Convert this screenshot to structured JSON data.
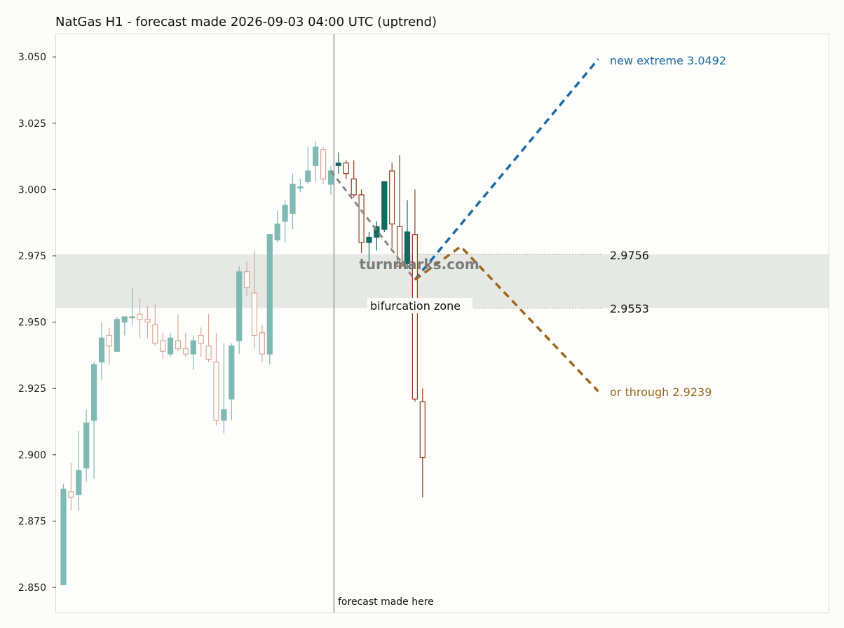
{
  "chart_data": {
    "type": "candlestick",
    "title": "NatGas H1 - forecast made 2026-09-03 04:00 UTC (uptrend)",
    "ylim": [
      2.8405,
      3.0585
    ],
    "yticks": [
      2.85,
      2.875,
      2.9,
      2.925,
      2.95,
      2.975,
      3.0,
      3.025,
      3.05
    ],
    "ytick_labels": [
      "2.850",
      "2.875",
      "2.900",
      "2.925",
      "2.950",
      "2.975",
      "3.000",
      "3.025",
      "3.050"
    ],
    "grid": false,
    "colors": {
      "history_up": "#7fb9b3",
      "history_down": "#d9a89a",
      "forecast_up": "#126b5f",
      "forecast_down": "#8f3f1c",
      "band": "#e6e8e6",
      "extreme_line": "#1f6aa3",
      "alt_line": "#9a6a1d",
      "path_line": "#888888",
      "marker_line": "#999999"
    },
    "history_candles": [
      {
        "o": 2.851,
        "h": 2.889,
        "l": 2.851,
        "c": 2.887
      },
      {
        "o": 2.886,
        "h": 2.897,
        "l": 2.879,
        "c": 2.884
      },
      {
        "o": 2.885,
        "h": 2.909,
        "l": 2.879,
        "c": 2.894
      },
      {
        "o": 2.895,
        "h": 2.917,
        "l": 2.89,
        "c": 2.912
      },
      {
        "o": 2.913,
        "h": 2.935,
        "l": 2.891,
        "c": 2.934
      },
      {
        "o": 2.935,
        "h": 2.95,
        "l": 2.928,
        "c": 2.944
      },
      {
        "o": 2.945,
        "h": 2.948,
        "l": 2.934,
        "c": 2.941
      },
      {
        "o": 2.939,
        "h": 2.952,
        "l": 2.939,
        "c": 2.951
      },
      {
        "o": 2.95,
        "h": 2.952,
        "l": 2.945,
        "c": 2.952
      },
      {
        "o": 2.952,
        "h": 2.963,
        "l": 2.949,
        "c": 2.952
      },
      {
        "o": 2.953,
        "h": 2.959,
        "l": 2.944,
        "c": 2.951
      },
      {
        "o": 2.951,
        "h": 2.956,
        "l": 2.944,
        "c": 2.95
      },
      {
        "o": 2.949,
        "h": 2.957,
        "l": 2.941,
        "c": 2.942
      },
      {
        "o": 2.943,
        "h": 2.946,
        "l": 2.936,
        "c": 2.939
      },
      {
        "o": 2.938,
        "h": 2.946,
        "l": 2.937,
        "c": 2.944
      },
      {
        "o": 2.943,
        "h": 2.953,
        "l": 2.939,
        "c": 2.94
      },
      {
        "o": 2.94,
        "h": 2.946,
        "l": 2.937,
        "c": 2.938
      },
      {
        "o": 2.938,
        "h": 2.945,
        "l": 2.932,
        "c": 2.943
      },
      {
        "o": 2.945,
        "h": 2.948,
        "l": 2.937,
        "c": 2.942
      },
      {
        "o": 2.941,
        "h": 2.953,
        "l": 2.935,
        "c": 2.936
      },
      {
        "o": 2.935,
        "h": 2.946,
        "l": 2.911,
        "c": 2.913
      },
      {
        "o": 2.913,
        "h": 2.942,
        "l": 2.908,
        "c": 2.917
      },
      {
        "o": 2.921,
        "h": 2.942,
        "l": 2.913,
        "c": 2.941
      },
      {
        "o": 2.943,
        "h": 2.971,
        "l": 2.938,
        "c": 2.969
      },
      {
        "o": 2.969,
        "h": 2.973,
        "l": 2.96,
        "c": 2.963
      },
      {
        "o": 2.961,
        "h": 2.977,
        "l": 2.94,
        "c": 2.945
      },
      {
        "o": 2.946,
        "h": 2.949,
        "l": 2.935,
        "c": 2.938
      },
      {
        "o": 2.938,
        "h": 2.983,
        "l": 2.934,
        "c": 2.983
      },
      {
        "o": 2.981,
        "h": 2.992,
        "l": 2.98,
        "c": 2.987
      },
      {
        "o": 2.988,
        "h": 2.996,
        "l": 2.98,
        "c": 2.994
      },
      {
        "o": 2.991,
        "h": 3.006,
        "l": 2.985,
        "c": 3.002
      },
      {
        "o": 3.001,
        "h": 3.004,
        "l": 2.999,
        "c": 3.001
      },
      {
        "o": 3.003,
        "h": 3.016,
        "l": 3.002,
        "c": 3.007
      },
      {
        "o": 3.009,
        "h": 3.018,
        "l": 3.003,
        "c": 3.016
      },
      {
        "o": 3.015,
        "h": 3.016,
        "l": 3.002,
        "c": 3.004
      },
      {
        "o": 3.002,
        "h": 3.009,
        "l": 2.998,
        "c": 3.007
      }
    ],
    "forecast_candles": [
      {
        "o": 3.009,
        "h": 3.014,
        "l": 3.006,
        "c": 3.01
      },
      {
        "o": 3.01,
        "h": 3.011,
        "l": 3.004,
        "c": 3.006
      },
      {
        "o": 3.004,
        "h": 3.011,
        "l": 2.997,
        "c": 2.998
      },
      {
        "o": 2.998,
        "h": 3.0,
        "l": 2.976,
        "c": 2.98
      },
      {
        "o": 2.98,
        "h": 2.984,
        "l": 2.972,
        "c": 2.982
      },
      {
        "o": 2.982,
        "h": 2.988,
        "l": 2.977,
        "c": 2.986
      },
      {
        "o": 2.985,
        "h": 3.003,
        "l": 2.984,
        "c": 3.003
      },
      {
        "o": 3.007,
        "h": 3.01,
        "l": 2.978,
        "c": 2.987
      },
      {
        "o": 2.986,
        "h": 3.013,
        "l": 2.97,
        "c": 2.971
      },
      {
        "o": 2.972,
        "h": 2.996,
        "l": 2.97,
        "c": 2.984
      },
      {
        "o": 2.983,
        "h": 3.0,
        "l": 2.92,
        "c": 2.921
      },
      {
        "o": 2.92,
        "h": 2.925,
        "l": 2.884,
        "c": 2.899
      }
    ],
    "forecast_path": [
      {
        "x": 35,
        "y": 3.007
      },
      {
        "x": 46,
        "y": 2.966
      }
    ],
    "extreme_path": [
      {
        "x": 46,
        "y": 2.966
      },
      {
        "x": 70,
        "y": 3.0492
      }
    ],
    "alt_path": [
      {
        "x": 46,
        "y": 2.966
      },
      {
        "x": 52,
        "y": 2.9785
      },
      {
        "x": 70,
        "y": 2.9239
      }
    ],
    "forecast_index": 35.5,
    "bifurcation_zone": [
      2.9553,
      2.9756
    ],
    "level_lines": [
      2.9756,
      2.9553
    ],
    "labels": {
      "new_extreme": "new extreme 3.0492",
      "alt_through": "or through 2.9239",
      "upper_level": "2.9756",
      "lower_level": "2.9553",
      "zone": "bifurcation zone",
      "forecast_marker": "forecast made here",
      "watermark": "turnmarks.com"
    }
  }
}
